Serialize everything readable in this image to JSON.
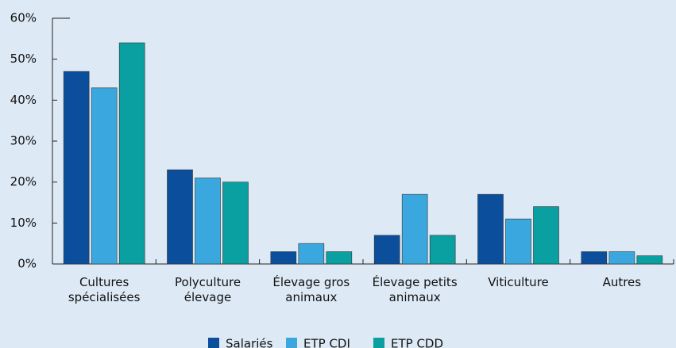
{
  "chart_data": {
    "type": "bar",
    "categories": [
      "Cultures spécialisées",
      "Polyculture élevage",
      "Élevage gros animaux",
      "Élevage petits animaux",
      "Viticulture",
      "Autres"
    ],
    "series": [
      {
        "name": "Salariés",
        "color": "#0b4f9c",
        "values": [
          47,
          23,
          3,
          7,
          17,
          3
        ]
      },
      {
        "name": "ETP CDI",
        "color": "#3aa8de",
        "values": [
          43,
          21,
          5,
          17,
          11,
          3
        ]
      },
      {
        "name": "ETP CDD",
        "color": "#0a9fa0",
        "values": [
          54,
          20,
          3,
          7,
          14,
          2
        ]
      }
    ],
    "ylim": [
      0,
      60
    ],
    "yticks": [
      {
        "value": 0,
        "label": "0%"
      },
      {
        "value": 10,
        "label": "10%"
      },
      {
        "value": 20,
        "label": "20%"
      },
      {
        "value": 30,
        "label": "30%"
      },
      {
        "value": 40,
        "label": "40%"
      },
      {
        "value": 50,
        "label": "50%"
      },
      {
        "value": 60,
        "label": "60%"
      }
    ],
    "grid": false,
    "legend": "bottom"
  }
}
